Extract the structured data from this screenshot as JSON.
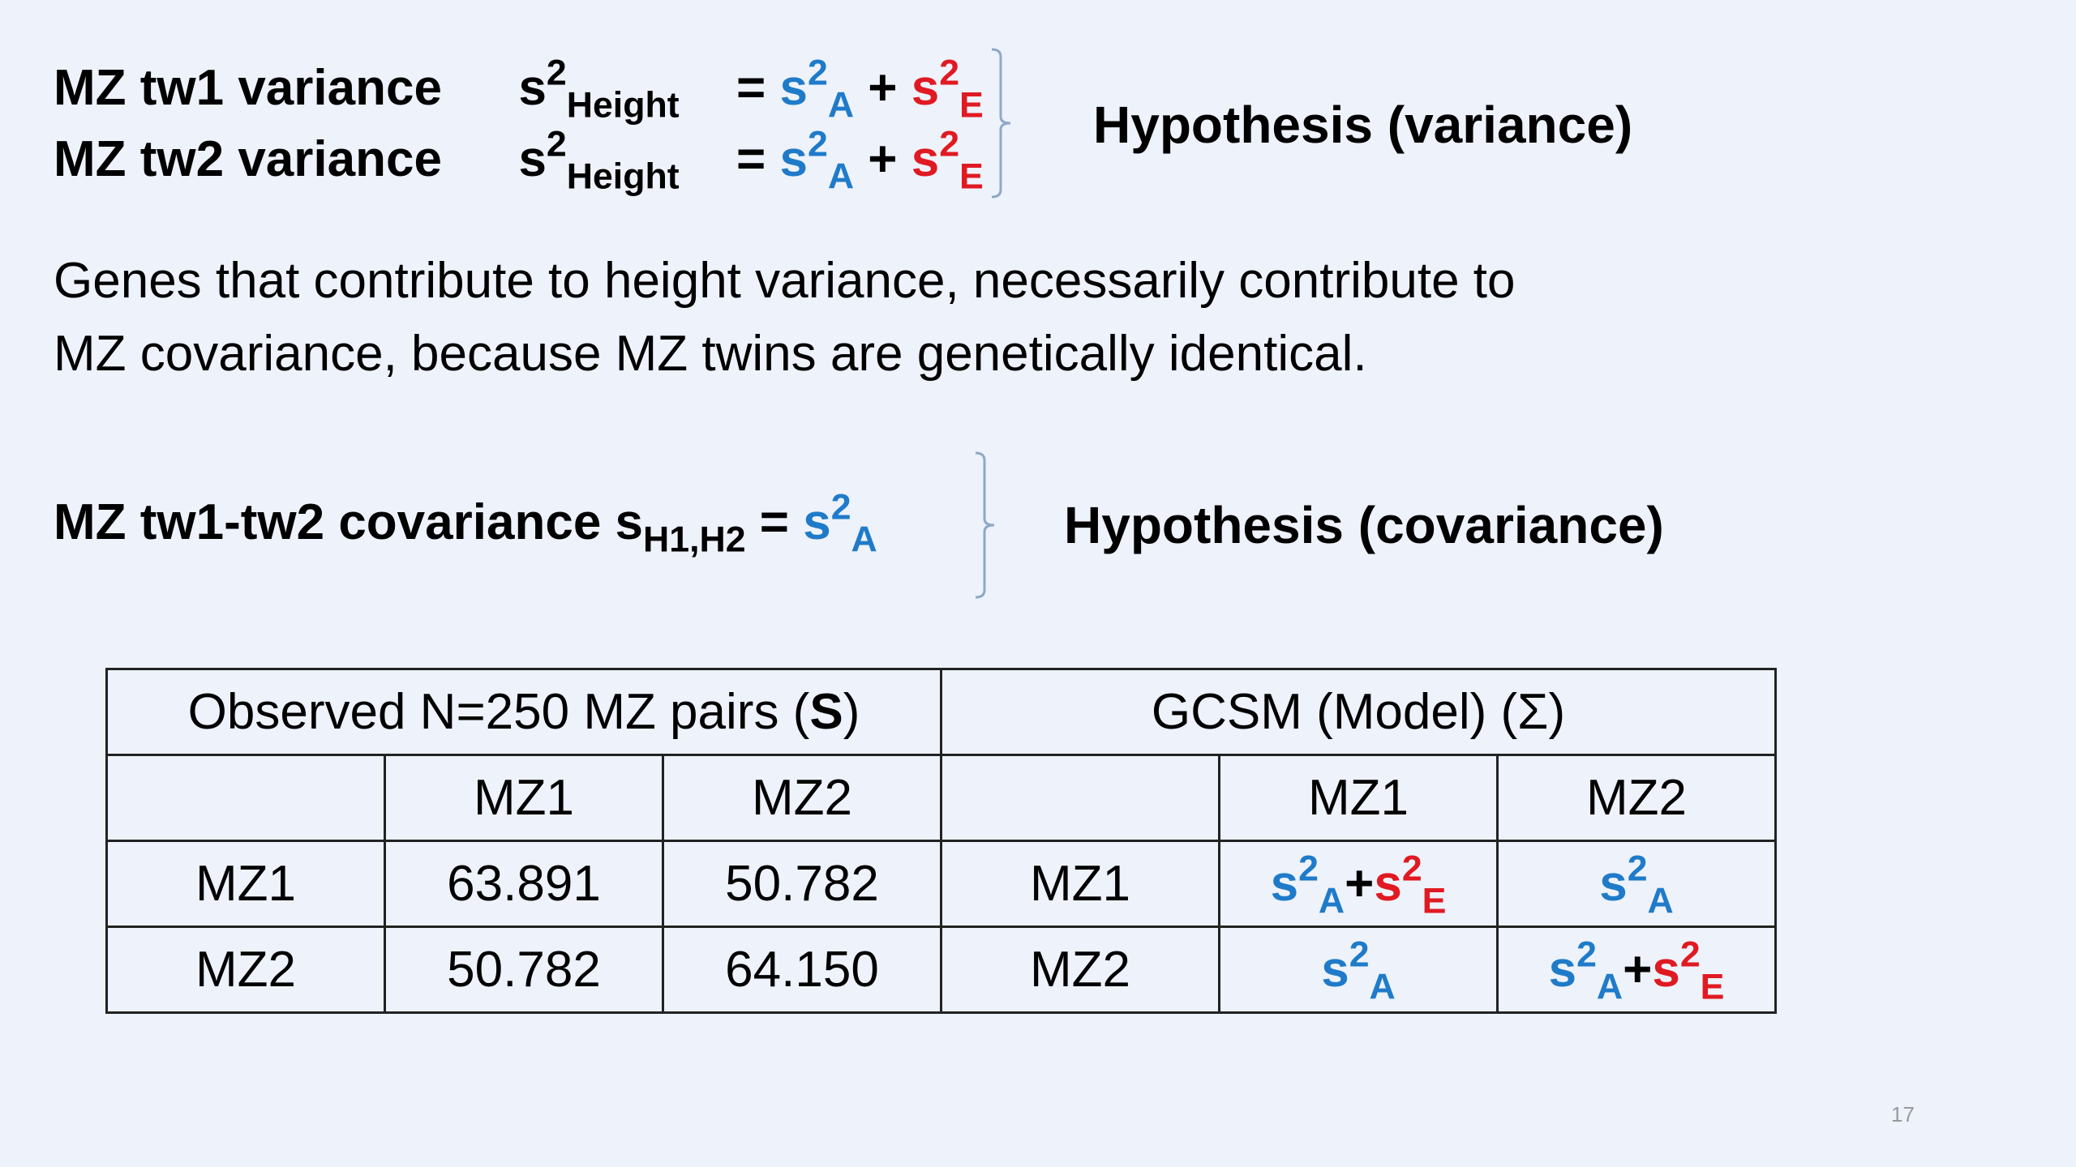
{
  "equations": {
    "row1": {
      "label": "MZ tw1 variance",
      "s": "s",
      "sup": "2",
      "sub": "Height",
      "eq": "="
    },
    "row2": {
      "label": "MZ tw2 variance",
      "s": "s",
      "sup": "2",
      "sub": "Height",
      "eq": "="
    },
    "hypothesis_variance": "Hypothesis (variance)"
  },
  "terms": {
    "s": "s",
    "two": "2",
    "A": "A",
    "E": "E",
    "plus": "+"
  },
  "paragraph": {
    "line1": "Genes that contribute to height variance, necessarily contribute to",
    "line2": "MZ covariance, because MZ twins are genetically identical."
  },
  "covariance": {
    "label": "MZ tw1-tw2 covariance",
    "s": "s",
    "sub": "H1,H2",
    "eq": "=",
    "hypothesis": "Hypothesis (covariance)"
  },
  "table": {
    "observed_header_prefix": "Observed N=250 MZ pairs (",
    "observed_header_symbol": "S",
    "observed_header_suffix": ")",
    "model_header": "GCSM (Model) (Σ)",
    "col_headers": [
      "MZ1",
      "MZ2"
    ],
    "row_labels": [
      "MZ1",
      "MZ2"
    ],
    "observed": [
      [
        "63.891",
        "50.782"
      ],
      [
        "50.782",
        "64.150"
      ]
    ]
  },
  "colors": {
    "genetic": "#1F7BC9",
    "environment": "#E01A22",
    "background": "#EEF2FB"
  },
  "page_number": "17"
}
